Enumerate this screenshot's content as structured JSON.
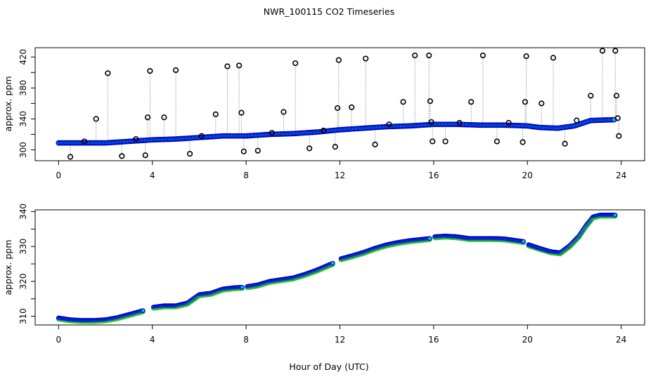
{
  "chart_data": [
    {
      "type": "scatter",
      "title": "NWR_100115  CO2 Timeseries",
      "xlabel": "",
      "ylabel": "approx. ppm",
      "xlim": [
        -1,
        25
      ],
      "ylim": [
        286,
        432
      ],
      "xticks": [
        "0",
        "4",
        "8",
        "12",
        "16",
        "20",
        "24"
      ],
      "xtick_values": [
        0,
        4,
        8,
        12,
        16,
        20,
        24
      ],
      "yticks": [
        "300",
        "340",
        "380",
        "420"
      ],
      "ytick_values": [
        300,
        340,
        380,
        420
      ],
      "baseline_knots": [
        [
          0,
          309
        ],
        [
          2,
          309
        ],
        [
          3,
          311
        ],
        [
          4,
          313
        ],
        [
          5,
          314
        ],
        [
          6,
          316
        ],
        [
          7,
          318
        ],
        [
          8,
          318
        ],
        [
          9,
          320
        ],
        [
          10,
          321
        ],
        [
          11,
          323
        ],
        [
          12,
          326
        ],
        [
          13,
          328
        ],
        [
          14,
          330
        ],
        [
          15,
          331
        ],
        [
          16,
          333
        ],
        [
          17,
          333
        ],
        [
          18,
          332
        ],
        [
          19,
          332
        ],
        [
          20,
          331
        ],
        [
          20.5,
          329
        ],
        [
          21.3,
          328
        ],
        [
          22,
          331
        ],
        [
          22.7,
          338
        ],
        [
          23.7,
          339
        ]
      ],
      "spikes": [
        [
          0.5,
          291
        ],
        [
          1.1,
          311
        ],
        [
          1.6,
          340
        ],
        [
          2.1,
          399
        ],
        [
          2.7,
          292
        ],
        [
          3.3,
          314
        ],
        [
          3.7,
          293
        ],
        [
          3.8,
          342
        ],
        [
          3.9,
          402
        ],
        [
          4.5,
          342
        ],
        [
          5.0,
          403
        ],
        [
          5.6,
          295
        ],
        [
          6.1,
          318
        ],
        [
          6.7,
          346
        ],
        [
          7.2,
          408
        ],
        [
          7.7,
          409
        ],
        [
          7.8,
          348
        ],
        [
          7.9,
          298
        ],
        [
          8.5,
          299
        ],
        [
          9.1,
          322
        ],
        [
          9.6,
          349
        ],
        [
          10.1,
          412
        ],
        [
          10.7,
          302
        ],
        [
          11.3,
          325
        ],
        [
          11.8,
          304
        ],
        [
          11.9,
          354
        ],
        [
          11.95,
          416
        ],
        [
          12.5,
          355
        ],
        [
          13.1,
          418
        ],
        [
          13.5,
          307
        ],
        [
          14.1,
          333
        ],
        [
          14.7,
          362
        ],
        [
          15.2,
          422
        ],
        [
          15.8,
          422
        ],
        [
          15.85,
          363
        ],
        [
          15.9,
          336
        ],
        [
          15.95,
          311
        ],
        [
          16.5,
          311
        ],
        [
          17.1,
          335
        ],
        [
          17.6,
          362
        ],
        [
          18.1,
          422
        ],
        [
          18.7,
          311
        ],
        [
          19.2,
          335
        ],
        [
          19.8,
          310
        ],
        [
          19.9,
          362
        ],
        [
          19.95,
          421
        ],
        [
          20.6,
          360
        ],
        [
          21.1,
          419
        ],
        [
          21.6,
          308
        ],
        [
          22.1,
          338
        ],
        [
          22.7,
          370
        ],
        [
          23.2,
          428
        ],
        [
          23.75,
          428
        ],
        [
          23.8,
          370
        ],
        [
          23.85,
          341
        ],
        [
          23.9,
          318
        ]
      ],
      "series_colors": {
        "raw": "#000000",
        "fit": "#0000cc",
        "fill": "#00c8c8",
        "connector": "#999999"
      }
    },
    {
      "type": "scatter",
      "title": "",
      "xlabel": "Hour of Day (UTC)",
      "ylabel": "approx. ppm",
      "xlim": [
        -1,
        25
      ],
      "ylim": [
        307.5,
        340.5
      ],
      "xticks": [
        "0",
        "4",
        "8",
        "12",
        "16",
        "20",
        "24"
      ],
      "xtick_values": [
        0,
        4,
        8,
        12,
        16,
        20,
        24
      ],
      "yticks": [
        "310",
        "320",
        "330",
        "340"
      ],
      "ytick_values": [
        310,
        320,
        330,
        340
      ],
      "segments": [
        {
          "x": [
            0,
            0.5,
            1,
            1.5,
            2,
            2.5,
            3,
            3.6
          ],
          "y": [
            309.5,
            309,
            308.8,
            308.8,
            309,
            309.6,
            310.5,
            311.6
          ]
        },
        {
          "x": [
            4.05,
            4.5,
            5,
            5.5,
            6,
            6.5,
            7,
            7.5,
            7.85
          ],
          "y": [
            312.6,
            313,
            313,
            313.8,
            316.2,
            316.6,
            317.8,
            318.2,
            318.3
          ]
        },
        {
          "x": [
            8.05,
            8.5,
            9,
            9.5,
            10,
            10.5,
            11,
            11.7
          ],
          "y": [
            318.5,
            319,
            320,
            320.5,
            321,
            322,
            323.2,
            325.2
          ]
        },
        {
          "x": [
            12.05,
            12.5,
            13,
            13.5,
            14,
            14.5,
            15,
            15.85
          ],
          "y": [
            326.5,
            327.3,
            328.3,
            329.5,
            330.5,
            331.2,
            331.7,
            332.3
          ]
        },
        {
          "x": [
            16.05,
            16.5,
            17,
            17.5,
            18,
            18.5,
            19,
            19.85
          ],
          "y": [
            332.8,
            333,
            332.8,
            332.3,
            332.3,
            332.3,
            332.2,
            331.4
          ]
        },
        {
          "x": [
            20.05,
            20.5,
            21,
            21.4,
            21.8,
            22.2,
            22.5,
            22.8,
            23.1,
            23.75
          ],
          "y": [
            330.5,
            329.5,
            328.5,
            328.2,
            330.2,
            333,
            336,
            338.5,
            339,
            339
          ]
        }
      ],
      "series_colors": {
        "outline": "#0000cc",
        "fill": "#00c8c8",
        "under": "#33cc33"
      }
    }
  ]
}
